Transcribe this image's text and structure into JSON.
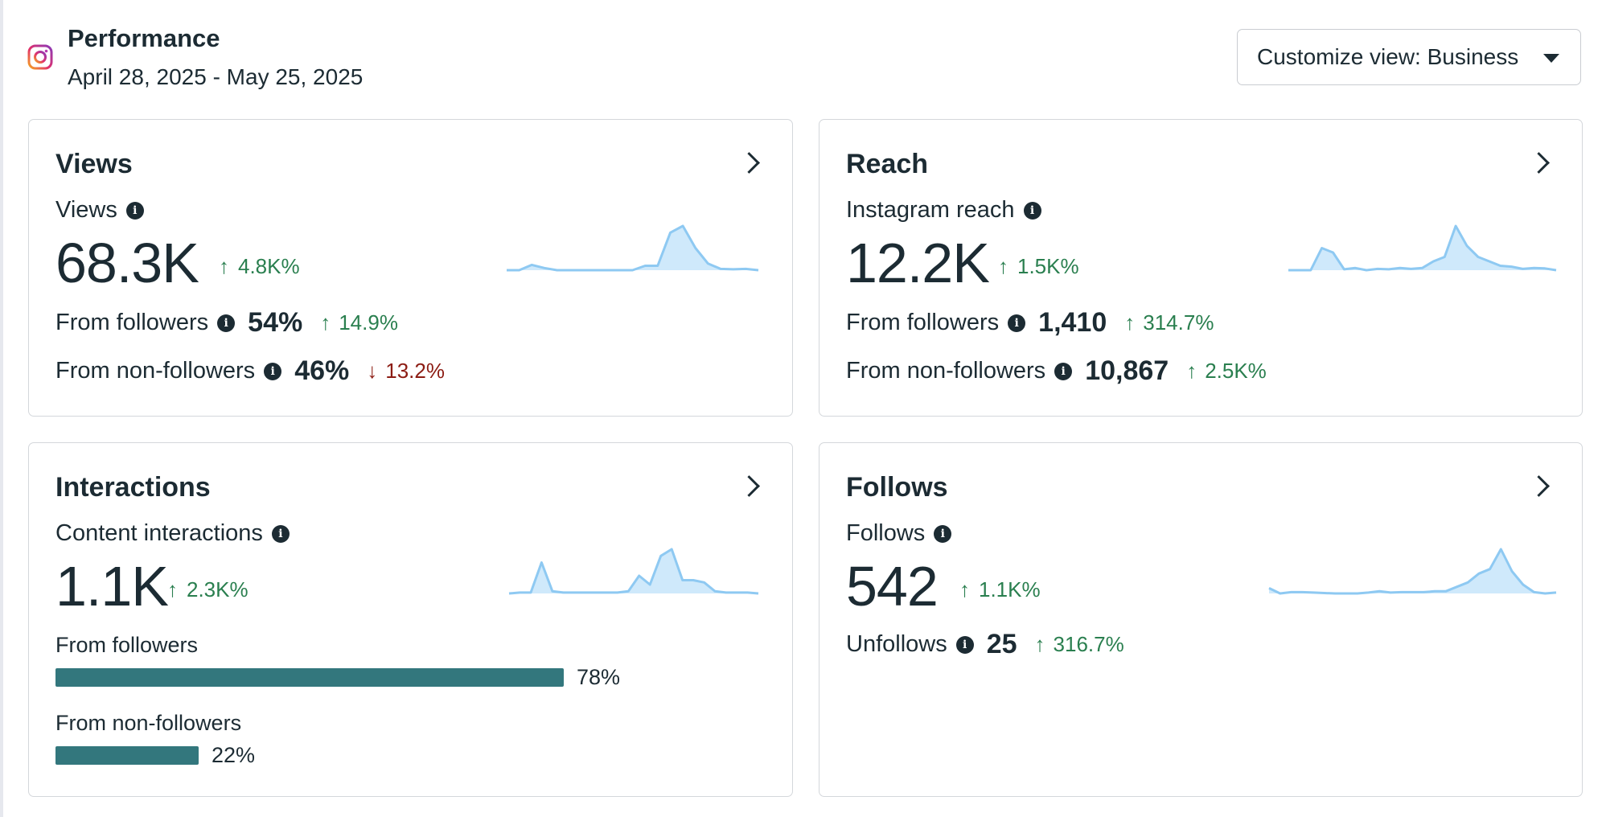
{
  "header": {
    "title": "Performance",
    "date_range": "April 28, 2025 - May 25, 2025",
    "customize_label": "Customize view: Business"
  },
  "colors": {
    "positive": "#2a7f4f",
    "negative": "#8c1c13",
    "bar": "#33777d",
    "spark_line": "#8ec9f2",
    "spark_fill": "#cfe9fb"
  },
  "cards": {
    "views": {
      "title": "Views",
      "metric_label": "Views",
      "value": "68.3K",
      "change": "4.8K%",
      "followers_label": "From followers",
      "followers_value": "54%",
      "followers_change": "14.9%",
      "non_followers_label": "From non-followers",
      "non_followers_value": "46%",
      "non_followers_change": "13.2%"
    },
    "reach": {
      "title": "Reach",
      "metric_label": "Instagram reach",
      "value": "12.2K",
      "change": "1.5K%",
      "followers_label": "From followers",
      "followers_value": "1,410",
      "followers_change": "314.7%",
      "non_followers_label": "From non-followers",
      "non_followers_value": "10,867",
      "non_followers_change": "2.5K%"
    },
    "interactions": {
      "title": "Interactions",
      "metric_label": "Content interactions",
      "value": "1.1K",
      "change": "2.3K%",
      "followers_label": "From followers",
      "followers_pct": "78%",
      "followers_fraction": 0.78,
      "non_followers_label": "From non-followers",
      "non_followers_pct": "22%",
      "non_followers_fraction": 0.22
    },
    "follows": {
      "title": "Follows",
      "metric_label": "Follows",
      "value": "542",
      "change": "1.1K%",
      "unfollows_label": "Unfollows",
      "unfollows_value": "25",
      "unfollows_change": "316.7%"
    }
  },
  "sparklines": {
    "views": [
      0,
      0,
      0.12,
      0.05,
      0,
      0,
      0,
      0,
      0,
      0,
      0,
      0.1,
      0.1,
      0.85,
      1.0,
      0.5,
      0.15,
      0.03,
      0.02,
      0.03,
      0
    ],
    "reach": [
      0,
      0,
      0,
      0.5,
      0.4,
      0.02,
      0.05,
      0,
      0.03,
      0.02,
      0.05,
      0.03,
      0.05,
      0.2,
      0.3,
      1.0,
      0.55,
      0.3,
      0.2,
      0.1,
      0.08,
      0.03,
      0.05,
      0.04,
      0
    ],
    "interactions": [
      0,
      0.02,
      0.02,
      0.7,
      0.05,
      0.02,
      0.02,
      0.02,
      0.02,
      0.02,
      0.02,
      0.05,
      0.4,
      0.2,
      0.85,
      1.0,
      0.3,
      0.3,
      0.25,
      0.05,
      0.02,
      0.02,
      0.02,
      0
    ],
    "follows": [
      0.12,
      0,
      0.03,
      0.03,
      0.02,
      0.01,
      0,
      0,
      0,
      0.02,
      0.05,
      0.02,
      0.03,
      0.03,
      0.03,
      0.05,
      0.05,
      0.15,
      0.25,
      0.45,
      0.55,
      1.0,
      0.5,
      0.2,
      0.03,
      0,
      0.02
    ]
  }
}
